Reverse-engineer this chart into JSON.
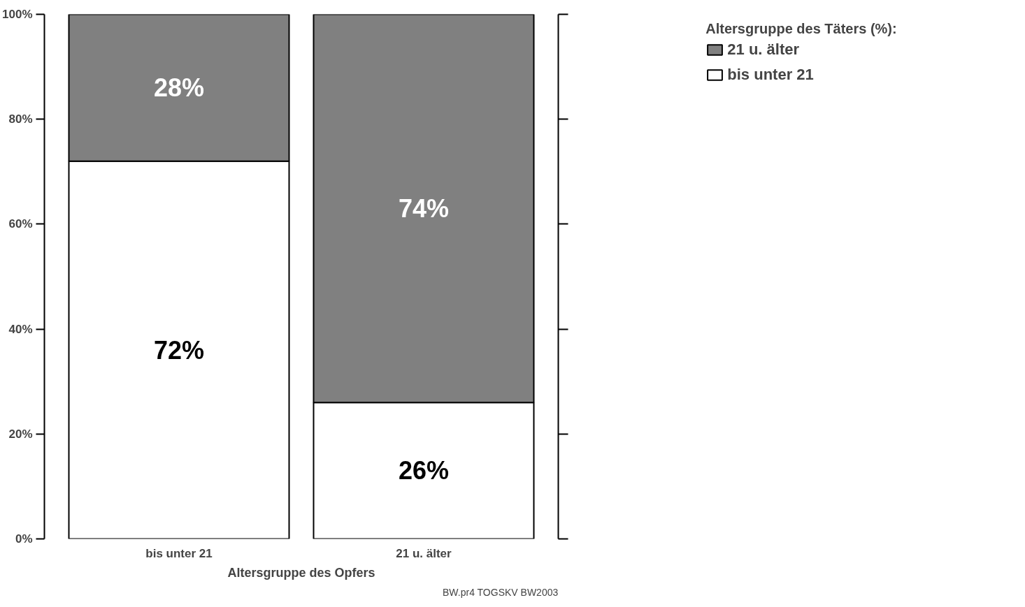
{
  "chart_data": {
    "type": "bar",
    "stacked": true,
    "xlabel": "Altersgruppe des Opfers",
    "legend_title": "Altersgruppe des Täters (%):",
    "legend": "top right",
    "grid": false,
    "categories": [
      "bis unter 21",
      "21 u. älter"
    ],
    "series": [
      {
        "name": "bis unter 21",
        "color": "#ffffff",
        "values": [
          72,
          26
        ],
        "value_labels": [
          "72%",
          "26%"
        ]
      },
      {
        "name": "21 u. älter",
        "color": "#808080",
        "values": [
          28,
          74
        ],
        "value_labels": [
          "28%",
          "74%"
        ]
      }
    ],
    "ylim": [
      0,
      100
    ],
    "yticks": [
      {
        "value": 0,
        "label": "0%"
      },
      {
        "value": 20,
        "label": "20%"
      },
      {
        "value": 40,
        "label": "40%"
      },
      {
        "value": 60,
        "label": "60%"
      },
      {
        "value": 80,
        "label": "80%"
      },
      {
        "value": 100,
        "label": "100%"
      }
    ],
    "annotations": [
      "BW.pr4 TOGSKV BW2003"
    ]
  }
}
